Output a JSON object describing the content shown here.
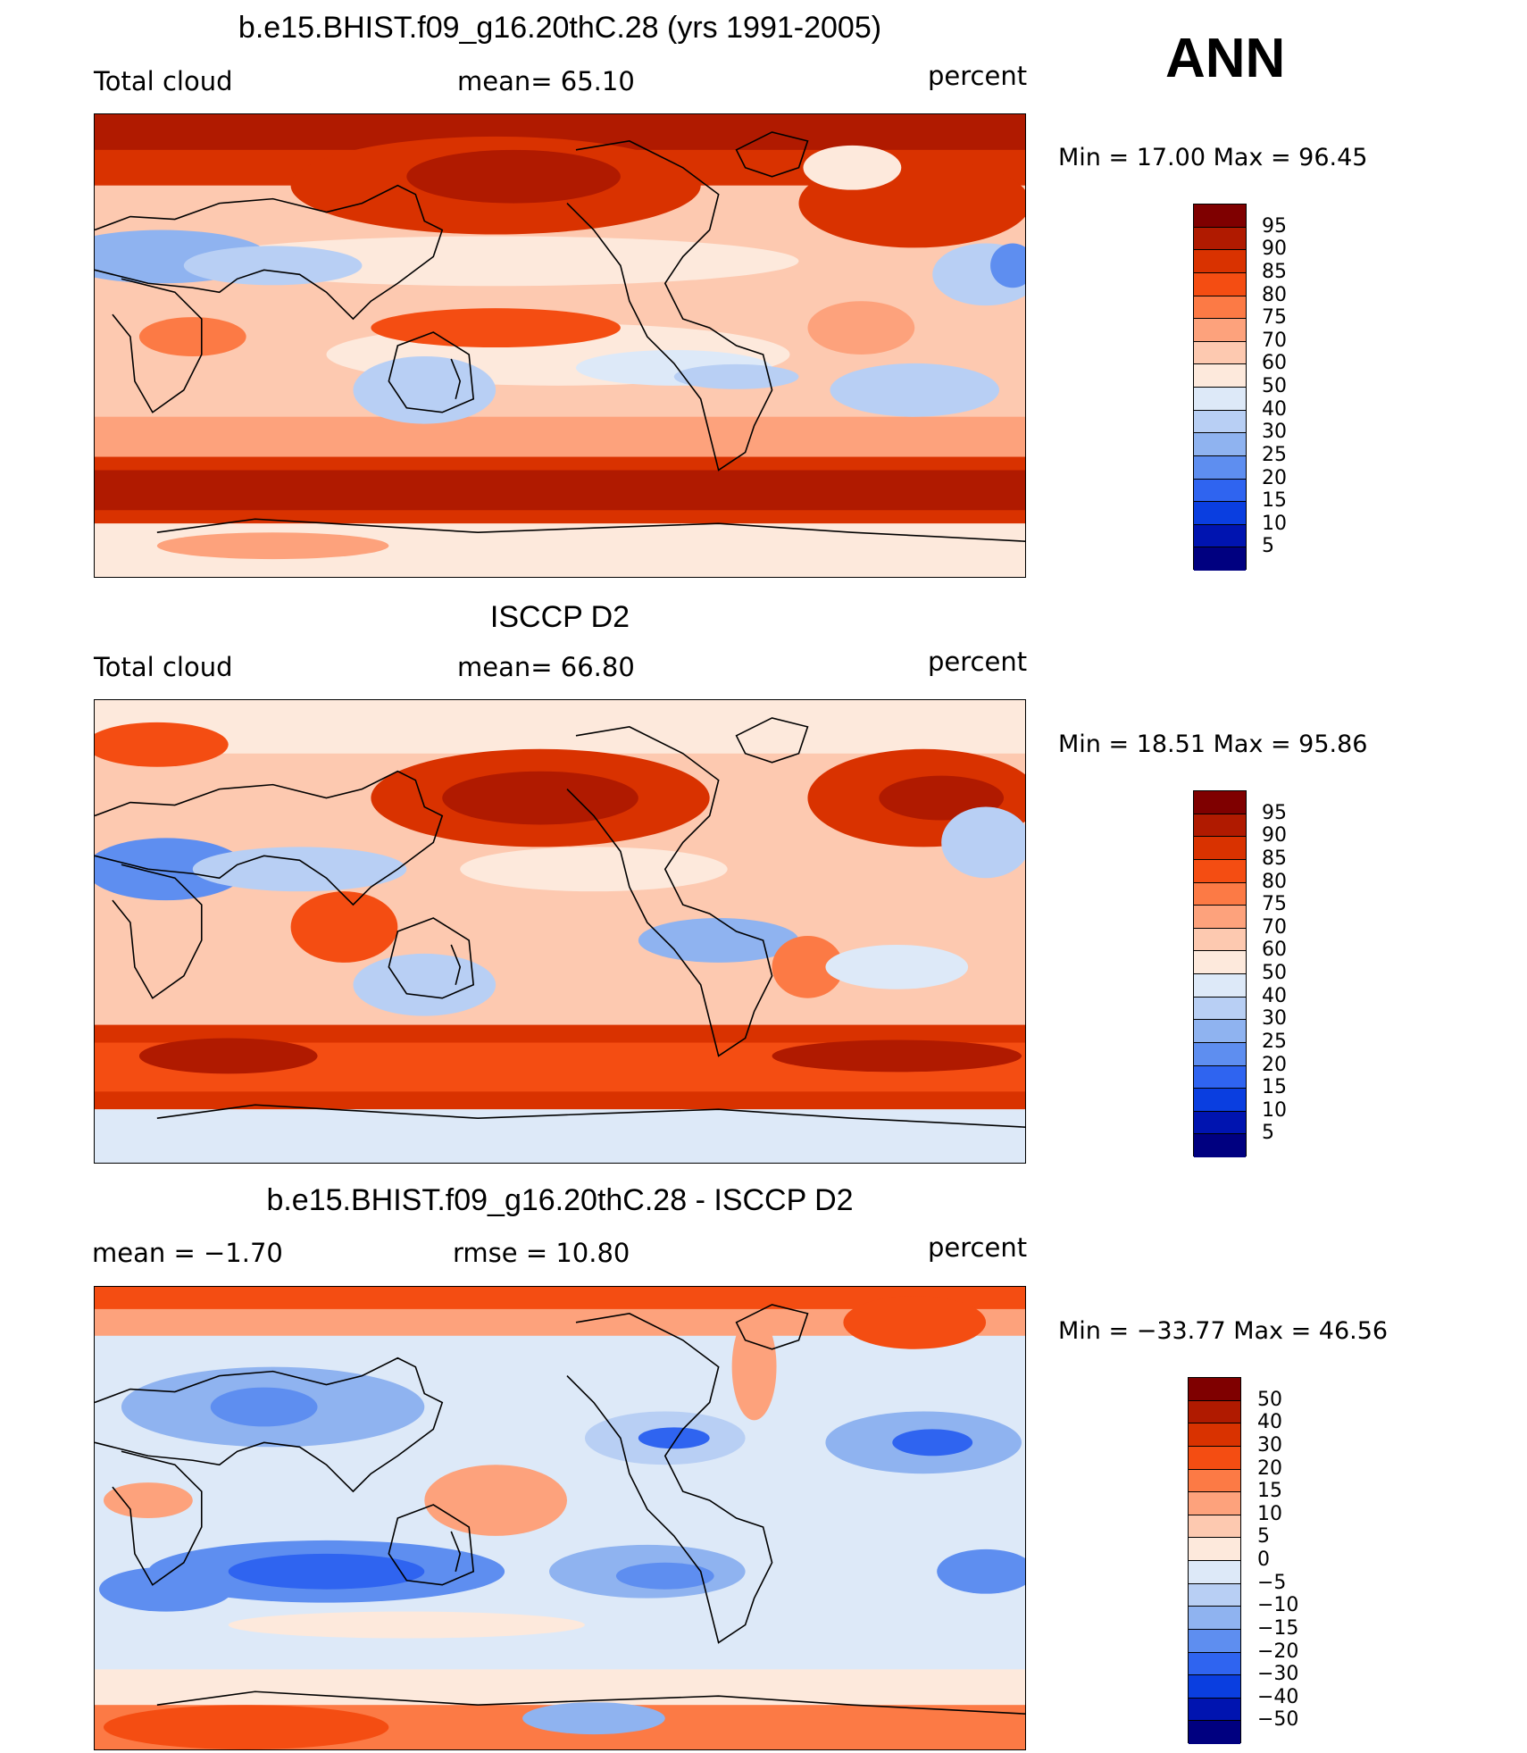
{
  "season": "ANN",
  "panels": [
    {
      "title": "b.e15.BHIST.f09_g16.20thC.28 (yrs 1991-2005)",
      "left_label": "Total cloud",
      "stat_label": "mean=   65.10",
      "units": "percent",
      "minmax": "Min  =    17.00  Max  =    96.45",
      "levels": [
        "95",
        "90",
        "85",
        "80",
        "75",
        "70",
        "60",
        "50",
        "40",
        "30",
        "25",
        "20",
        "15",
        "10",
        "5"
      ]
    },
    {
      "title": "ISCCP D2",
      "left_label": "Total cloud",
      "stat_label": "mean=   66.80",
      "units": "percent",
      "minmax": "Min  =    18.51  Max  =    95.86",
      "levels": [
        "95",
        "90",
        "85",
        "80",
        "75",
        "70",
        "60",
        "50",
        "40",
        "30",
        "25",
        "20",
        "15",
        "10",
        "5"
      ]
    },
    {
      "title": "b.e15.BHIST.f09_g16.20thC.28 - ISCCP D2",
      "left_label": "mean  =    −1.70",
      "stat_label": "rmse  =    10.80",
      "units": "percent",
      "minmax": "Min  = −33.77  Max  =    46.56",
      "levels": [
        "50",
        "40",
        "30",
        "20",
        "15",
        "10",
        "5",
        "0",
        "−5",
        "−10",
        "−15",
        "−20",
        "−30",
        "−40",
        "−50"
      ]
    }
  ],
  "colors": {
    "abs_scale": [
      "#7f0000",
      "#b01a00",
      "#d93200",
      "#f44d12",
      "#fc7a45",
      "#fda27c",
      "#fdc9b0",
      "#fde9dc",
      "#dde9f8",
      "#b8cff4",
      "#8fb3f0",
      "#5e8ef0",
      "#2f64f0",
      "#0a3ee0",
      "#0014b0",
      "#000080"
    ],
    "diff_scale": [
      "#7f0000",
      "#b01a00",
      "#d93200",
      "#f44d12",
      "#fc7a45",
      "#fda27c",
      "#fdc9b0",
      "#fde9dc",
      "#dde9f8",
      "#b8cff4",
      "#8fb3f0",
      "#5e8ef0",
      "#2f64f0",
      "#0a3ee0",
      "#0014b0",
      "#000080"
    ]
  }
}
